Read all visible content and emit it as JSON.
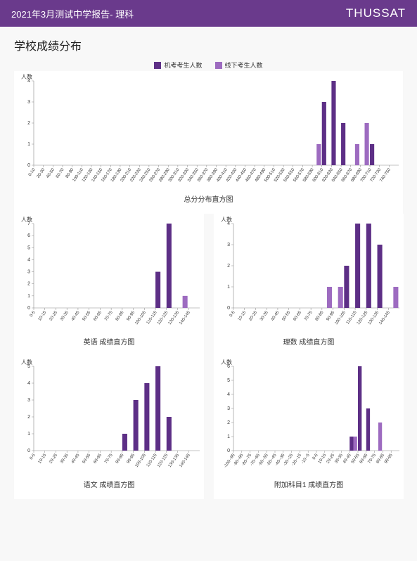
{
  "header": {
    "title": "2021年3月测试中学报告- 理科",
    "brand": "THUSSAT"
  },
  "section_title": "学校成绩分布",
  "legend": {
    "series1": {
      "label": "机考考生人数",
      "color": "#5d2f86"
    },
    "series2": {
      "label": "线下考生人数",
      "color": "#9d6bc0"
    }
  },
  "y_axis_label": "人数",
  "colors": {
    "bar1": "#5d2f86",
    "bar2": "#9d6bc0",
    "axis": "#888",
    "bg": "#f8f8f8"
  },
  "chart_total": {
    "title": "总分分布直方图",
    "x_ticks": [
      "0-10",
      "20-30",
      "40-50",
      "60-70",
      "80-90",
      "100-110",
      "120-130",
      "140-150",
      "160-170",
      "180-190",
      "200-210",
      "220-230",
      "240-250",
      "260-270",
      "280-290",
      "300-310",
      "320-330",
      "340-350",
      "360-370",
      "380-390",
      "400-410",
      "420-430",
      "440-450",
      "460-470",
      "480-490",
      "500-510",
      "520-530",
      "540-550",
      "560-570",
      "580-590",
      "600-610",
      "620-630",
      "640-650",
      "660-670",
      "680-690",
      "700-710",
      "720-730",
      "740-750"
    ],
    "y_max": 4,
    "y_step": 1,
    "bars": [
      {
        "x": 29,
        "s1": 0,
        "s2": 1
      },
      {
        "x": 30,
        "s1": 3,
        "s2": 0
      },
      {
        "x": 31,
        "s1": 4,
        "s2": 0
      },
      {
        "x": 32,
        "s1": 2,
        "s2": 0
      },
      {
        "x": 33,
        "s1": 0,
        "s2": 1
      },
      {
        "x": 34,
        "s1": 0,
        "s2": 2
      },
      {
        "x": 35,
        "s1": 1,
        "s2": 0
      }
    ]
  },
  "chart_english": {
    "title": "英语 成绩直方图",
    "x_ticks": [
      "0-5",
      "10-15",
      "20-25",
      "30-35",
      "40-45",
      "50-55",
      "60-65",
      "70-75",
      "80-85",
      "90-95",
      "100-105",
      "110-115",
      "120-125",
      "130-135",
      "140-145"
    ],
    "y_max": 7,
    "y_step": 1,
    "bars": [
      {
        "x": 11,
        "s1": 3,
        "s2": 0
      },
      {
        "x": 12,
        "s1": 7,
        "s2": 0
      },
      {
        "x": 13,
        "s1": 0,
        "s2": 1
      }
    ]
  },
  "chart_science": {
    "title": "理数 成绩直方图",
    "x_ticks": [
      "0-5",
      "10-15",
      "20-25",
      "30-35",
      "40-45",
      "50-55",
      "60-65",
      "70-75",
      "80-85",
      "90-95",
      "100-105",
      "110-115",
      "120-125",
      "130-135",
      "140-145"
    ],
    "y_max": 4,
    "y_step": 1,
    "bars": [
      {
        "x": 8,
        "s1": 0,
        "s2": 1
      },
      {
        "x": 9,
        "s1": 0,
        "s2": 1
      },
      {
        "x": 10,
        "s1": 2,
        "s2": 0
      },
      {
        "x": 11,
        "s1": 4,
        "s2": 0
      },
      {
        "x": 12,
        "s1": 4,
        "s2": 0
      },
      {
        "x": 13,
        "s1": 3,
        "s2": 0
      },
      {
        "x": 14,
        "s1": 0,
        "s2": 1
      }
    ]
  },
  "chart_chinese": {
    "title": "语文 成绩直方图",
    "x_ticks": [
      "0-5",
      "10-15",
      "20-25",
      "30-35",
      "40-45",
      "50-55",
      "60-65",
      "70-75",
      "80-85",
      "90-95",
      "100-105",
      "110-115",
      "120-125",
      "130-135",
      "140-145"
    ],
    "y_max": 5,
    "y_step": 1,
    "bars": [
      {
        "x": 8,
        "s1": 1,
        "s2": 0
      },
      {
        "x": 9,
        "s1": 3,
        "s2": 0
      },
      {
        "x": 10,
        "s1": 4,
        "s2": 0
      },
      {
        "x": 11,
        "s1": 5,
        "s2": 0
      },
      {
        "x": 12,
        "s1": 2,
        "s2": 0
      }
    ]
  },
  "chart_extra1": {
    "title": "附加科目1 成绩直方图",
    "x_ticks": [
      "-100--95",
      "-90--85",
      "-80--75",
      "-70--65",
      "-60--55",
      "-50--45",
      "-40--35",
      "-30--25",
      "-20--15",
      "-10--5",
      "0-5",
      "10-15",
      "20-25",
      "30-35",
      "40-45",
      "50-55",
      "60-65",
      "70-75",
      "80-85",
      "90-95"
    ],
    "y_max": 6,
    "y_step": 1,
    "bars": [
      {
        "x": 14,
        "s1": 1,
        "s2": 1
      },
      {
        "x": 15,
        "s1": 6,
        "s2": 0
      },
      {
        "x": 16,
        "s1": 3,
        "s2": 0
      },
      {
        "x": 17,
        "s1": 0,
        "s2": 2
      }
    ]
  }
}
